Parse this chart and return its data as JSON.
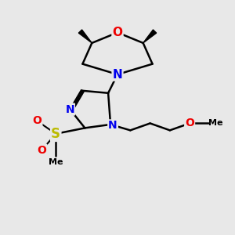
{
  "bg_color": "#e8e8e8",
  "bond_color": "#000000",
  "bond_width": 1.8,
  "N_color": "#0000ee",
  "O_color": "#ee0000",
  "S_color": "#bbbb00",
  "font_size_atom": 10,
  "fig_w": 3.0,
  "fig_h": 3.0,
  "dpi": 100,
  "xlim": [
    0,
    10
  ],
  "ylim": [
    0,
    10
  ]
}
